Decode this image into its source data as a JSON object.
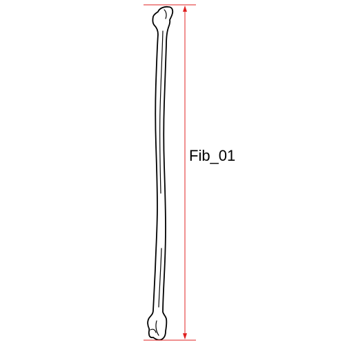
{
  "measurement": {
    "label": "Fib_01"
  },
  "colors": {
    "bone_outline": "#000000",
    "bone_fill": "#ffffff",
    "measure_line": "#e02020",
    "background": "#ffffff"
  }
}
